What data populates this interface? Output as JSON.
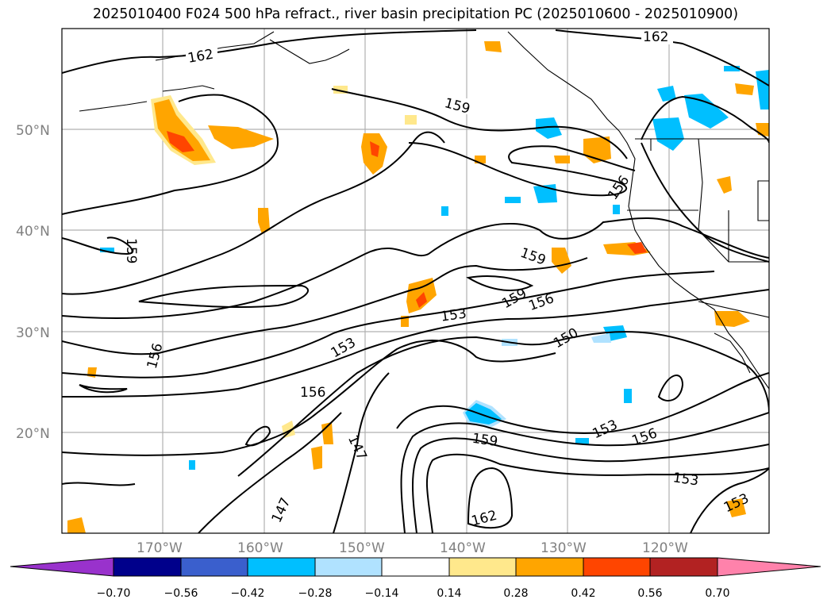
{
  "title": "2025010400 F024 500 hPa refract., river basin precipitation PC (2025010600 - 2025010900)",
  "map": {
    "lat_labels": [
      "50°N",
      "40°N",
      "30°N",
      "20°N"
    ],
    "lon_labels": [
      "170°W",
      "160°W",
      "150°W",
      "140°W",
      "130°W",
      "120°W"
    ],
    "contour_labels": [
      "162",
      "162",
      "159",
      "159",
      "159",
      "159",
      "156",
      "156",
      "156",
      "156",
      "156",
      "153",
      "153",
      "153",
      "153",
      "153",
      "150",
      "147",
      "147",
      "159",
      "162",
      "153"
    ]
  },
  "colorbar": {
    "ticks": [
      "−0.70",
      "−0.56",
      "−0.42",
      "−0.28",
      "−0.14",
      "0.14",
      "0.28",
      "0.42",
      "0.56",
      "0.70"
    ],
    "colors": [
      "#9932CC",
      "#00008B",
      "#3A5FCD",
      "#00BFFF",
      "#B0E2FF",
      "#FFFFFF",
      "#FFE88C",
      "#FFA500",
      "#FF4500",
      "#B22222",
      "#FF82AB"
    ]
  }
}
